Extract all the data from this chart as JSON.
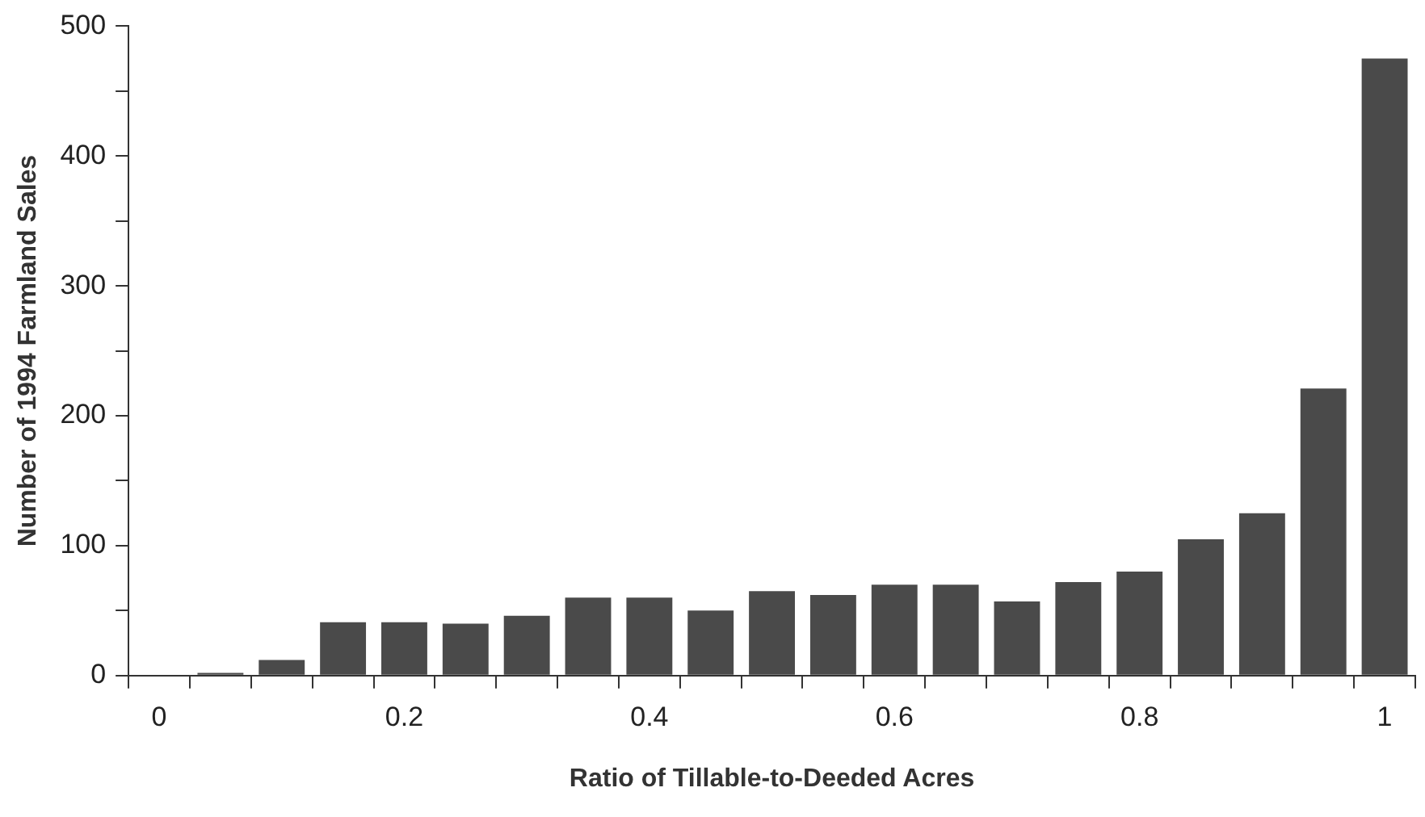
{
  "chart_data": {
    "type": "bar",
    "xlabel": "Ratio of Tillable-to-Deeded Acres",
    "ylabel": "Number of 1994 Farmland Sales",
    "categories": [
      "0",
      null,
      null,
      null,
      "0.2",
      null,
      null,
      null,
      "0.4",
      null,
      null,
      null,
      "0.6",
      null,
      null,
      null,
      "0.8",
      null,
      null,
      null,
      "1"
    ],
    "values": [
      0,
      2,
      12,
      41,
      41,
      40,
      46,
      60,
      60,
      50,
      65,
      62,
      70,
      70,
      57,
      72,
      80,
      105,
      125,
      221,
      475
    ],
    "color": "#4a4a4a",
    "ylim": [
      0,
      500
    ],
    "yticks": [
      0,
      {
        "value": 50,
        "label": null
      },
      100,
      {
        "value": 150,
        "label": null
      },
      200,
      {
        "value": 250,
        "label": null
      },
      300,
      {
        "value": 350,
        "label": null
      },
      400,
      {
        "value": 450,
        "label": null
      },
      500
    ],
    "grid": false,
    "legend": false
  }
}
